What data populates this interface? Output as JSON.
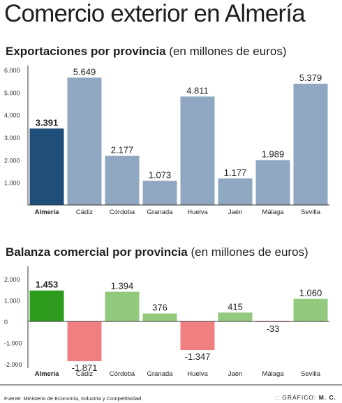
{
  "title": "Comercio exterior en Almería",
  "footer": {
    "source": "Fuente: Ministerio de Economía, Industria y Competitividad",
    "credit_prefix": ":: GRÁFICO:",
    "credit_author": "M. C."
  },
  "colors": {
    "export_highlight": "#1f4e79",
    "export_default": "#8fa7c0",
    "balance_pos_highlight": "#2e9a1e",
    "balance_pos_default": "#92c97c",
    "balance_neg": "#f08080"
  },
  "chart_data": [
    {
      "type": "bar",
      "title_bold": "Exportaciones por provincia",
      "title_rest": "(en millones de euros)",
      "categories": [
        "Almería",
        "Cádiz",
        "Córdoba",
        "Granada",
        "Huelva",
        "Jaén",
        "Málaga",
        "Sevilla"
      ],
      "values": [
        3391,
        5649,
        2177,
        1073,
        4811,
        1177,
        1989,
        5379
      ],
      "value_labels": [
        "3.391",
        "5.649",
        "2.177",
        "1.073",
        "4.811",
        "1.177",
        "1.989",
        "5.379"
      ],
      "ylim": [
        0,
        6000
      ],
      "yticks": [
        1000,
        2000,
        3000,
        4000,
        5000,
        6000
      ],
      "ytick_labels": [
        "1.000",
        "2.000",
        "3.000",
        "4.000",
        "5.000",
        "6.000"
      ],
      "highlight": "Almería",
      "grid": false
    },
    {
      "type": "bar",
      "title_bold": "Balanza comercial por provincia",
      "title_rest": "(en millones de euros)",
      "categories": [
        "Almería",
        "Cádiz",
        "Córdoba",
        "Granada",
        "Huelva",
        "Jaén",
        "Málaga",
        "Sevilla"
      ],
      "values": [
        1453,
        -1871,
        1394,
        376,
        -1347,
        415,
        -33,
        1060
      ],
      "value_labels": [
        "1.453",
        "-1.871",
        "1.394",
        "376",
        "-1.347",
        "415",
        "-33",
        "1.060"
      ],
      "ylim": [
        -2000,
        2000
      ],
      "yticks": [
        2000,
        1000,
        0,
        -1000,
        -2000
      ],
      "ytick_labels": [
        "2.000",
        "1.000",
        "0",
        "-1.000",
        "-2.000"
      ],
      "highlight": "Almería",
      "grid": false
    }
  ]
}
